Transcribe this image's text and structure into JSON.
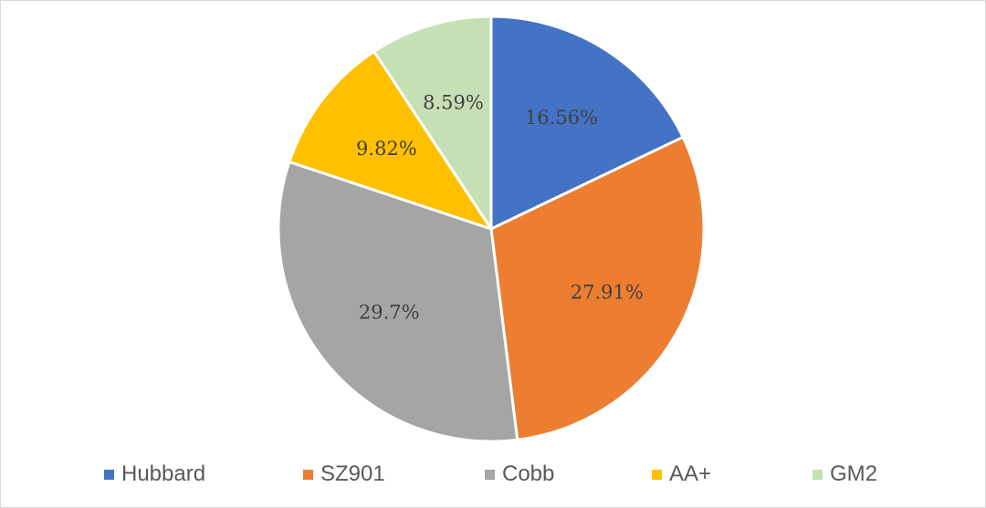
{
  "chart_data": {
    "type": "pie",
    "title": "",
    "legend_position": "bottom",
    "categories": [
      "Hubbard",
      "SZ901",
      "Cobb",
      "AA+",
      "GM2"
    ],
    "values": [
      16.56,
      27.91,
      29.7,
      9.82,
      8.59
    ],
    "labels": [
      "16.56%",
      "27.91%",
      "29.7%",
      "9.82%",
      "8.59%"
    ],
    "colors": [
      "#4472C4",
      "#ED7D31",
      "#A5A5A5",
      "#FFC000",
      "#C5E0B4"
    ]
  }
}
